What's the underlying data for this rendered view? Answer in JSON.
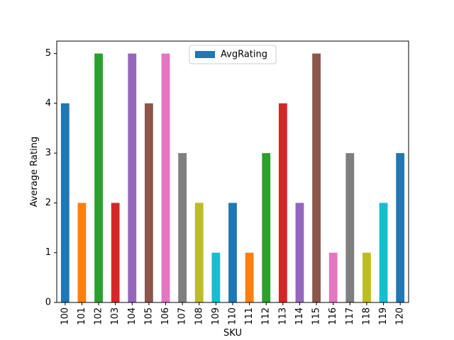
{
  "chart_data": {
    "type": "bar",
    "categories": [
      "100",
      "101",
      "102",
      "103",
      "104",
      "105",
      "106",
      "107",
      "108",
      "109",
      "110",
      "111",
      "112",
      "113",
      "114",
      "115",
      "116",
      "117",
      "118",
      "119",
      "120"
    ],
    "series": [
      {
        "name": "AvgRating",
        "values": [
          4,
          2,
          5,
          2,
          5,
          4,
          5,
          3,
          2,
          1,
          2,
          1,
          3,
          4,
          2,
          5,
          1,
          3,
          1,
          2,
          3
        ]
      }
    ],
    "title": "",
    "xlabel": "SKU",
    "ylabel": "Average Rating",
    "ylim": [
      0,
      5.25
    ],
    "yticks": [
      0,
      1,
      2,
      3,
      4,
      5
    ],
    "grid": false,
    "legend_position": "top-center",
    "colors": [
      "#1f77b4",
      "#ff7f0e",
      "#2ca02c",
      "#d62728",
      "#9467bd",
      "#8c564b",
      "#e377c2",
      "#7f7f7f",
      "#bcbd22",
      "#17becf"
    ],
    "legend_color": "#1f77b4"
  }
}
